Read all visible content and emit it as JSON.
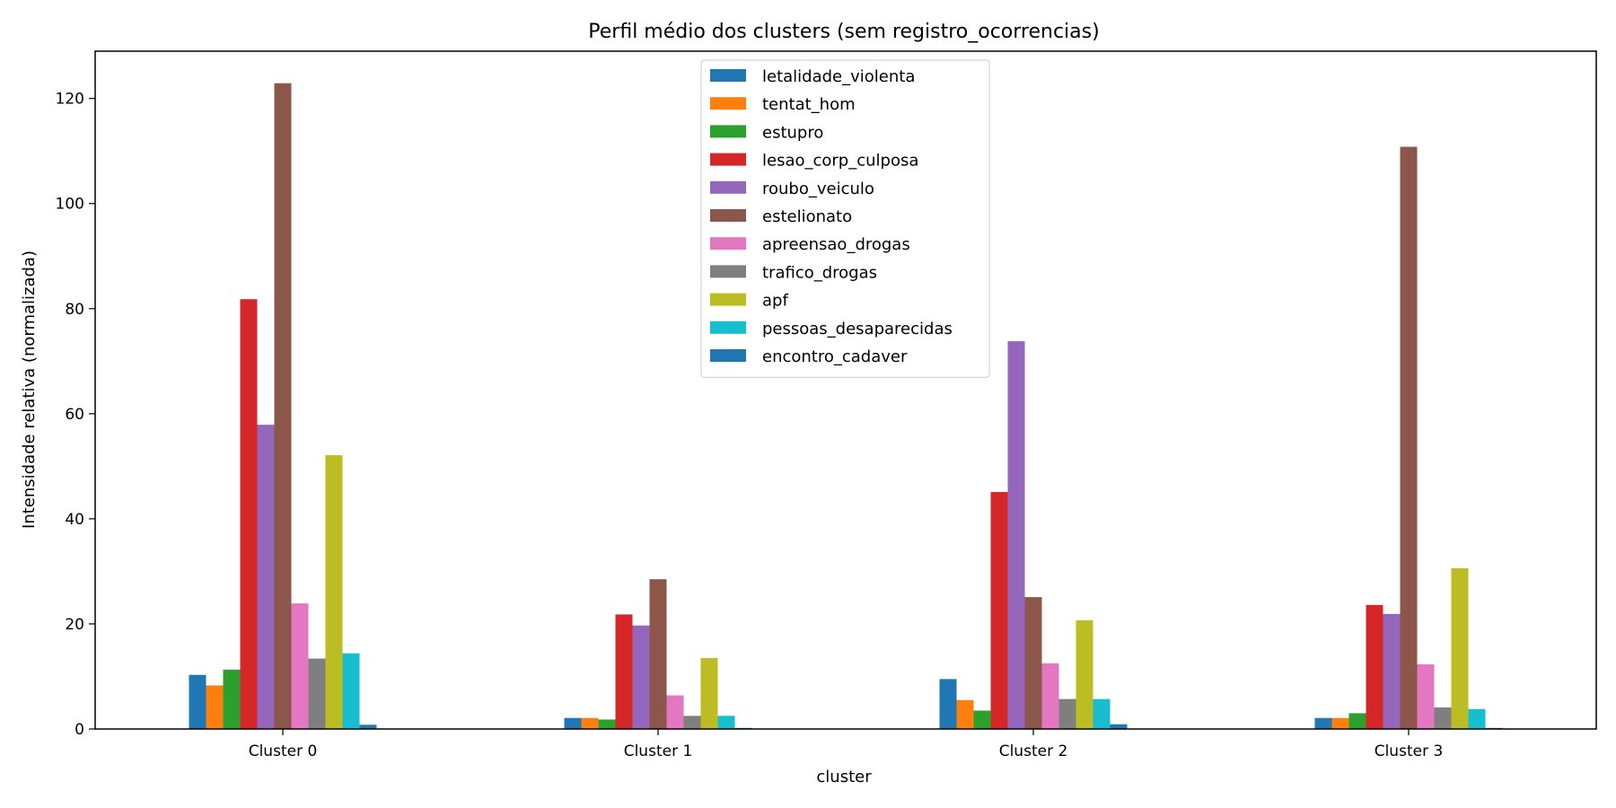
{
  "chart_data": {
    "type": "bar",
    "title": "Perfil médio dos clusters (sem registro_ocorrencias)",
    "xlabel": "cluster",
    "ylabel": "Intensidade relativa (normalizada)",
    "ylim": [
      0,
      129
    ],
    "yticks": [
      0,
      20,
      40,
      60,
      80,
      100,
      120
    ],
    "legend_position": "upper-center",
    "grid": false,
    "categories": [
      "Cluster 0",
      "Cluster 1",
      "Cluster 2",
      "Cluster 3"
    ],
    "series": [
      {
        "name": "letalidade_violenta",
        "color": "#1f77b4",
        "values": [
          10.3,
          2.1,
          9.5,
          2.1
        ]
      },
      {
        "name": "tentat_hom",
        "color": "#ff7f0e",
        "values": [
          8.3,
          2.1,
          5.5,
          2.1
        ]
      },
      {
        "name": "estupro",
        "color": "#2ca02c",
        "values": [
          11.3,
          1.8,
          3.5,
          3.0
        ]
      },
      {
        "name": "lesao_corp_culposa",
        "color": "#d62728",
        "values": [
          81.8,
          21.8,
          45.1,
          23.6
        ]
      },
      {
        "name": "roubo_veiculo",
        "color": "#9467bd",
        "values": [
          57.9,
          19.7,
          73.8,
          21.9
        ]
      },
      {
        "name": "estelionato",
        "color": "#8c564b",
        "values": [
          122.9,
          28.5,
          25.1,
          110.8
        ]
      },
      {
        "name": "apreensao_drogas",
        "color": "#e377c2",
        "values": [
          23.9,
          6.4,
          12.5,
          12.3
        ]
      },
      {
        "name": "trafico_drogas",
        "color": "#7f7f7f",
        "values": [
          13.4,
          2.5,
          5.7,
          4.1
        ]
      },
      {
        "name": "apf",
        "color": "#bcbd22",
        "values": [
          52.1,
          13.5,
          20.7,
          30.6
        ]
      },
      {
        "name": "pessoas_desaparecidas",
        "color": "#17becf",
        "values": [
          14.4,
          2.5,
          5.7,
          3.8
        ]
      },
      {
        "name": "encontro_cadaver",
        "color": "#1f77b4",
        "values": [
          0.8,
          0.2,
          0.9,
          0.2
        ]
      }
    ]
  }
}
